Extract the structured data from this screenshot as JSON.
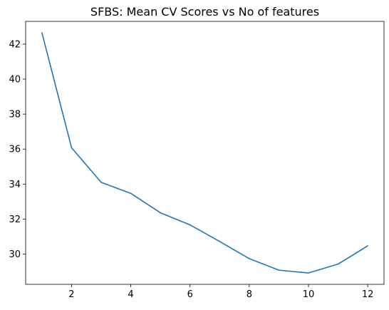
{
  "chart_data": {
    "type": "line",
    "title": "SFBS: Mean CV Scores vs No of features",
    "xlabel": "",
    "ylabel": "",
    "x": [
      1,
      2,
      3,
      4,
      5,
      6,
      7,
      8,
      9,
      10,
      11,
      12
    ],
    "series": [
      {
        "values": [
          42.65,
          36.08,
          34.1,
          33.47,
          32.36,
          31.67,
          30.72,
          29.74,
          29.08,
          28.92,
          29.43,
          30.47
        ],
        "color": "#1f77b4"
      }
    ],
    "xlim": [
      0.45,
      12.55
    ],
    "ylim": [
      28.27,
      43.3
    ],
    "xticks": [
      2,
      4,
      6,
      8,
      10,
      12
    ],
    "yticks": [
      30,
      32,
      34,
      36,
      38,
      40,
      42
    ],
    "grid": false,
    "legend": "none"
  }
}
